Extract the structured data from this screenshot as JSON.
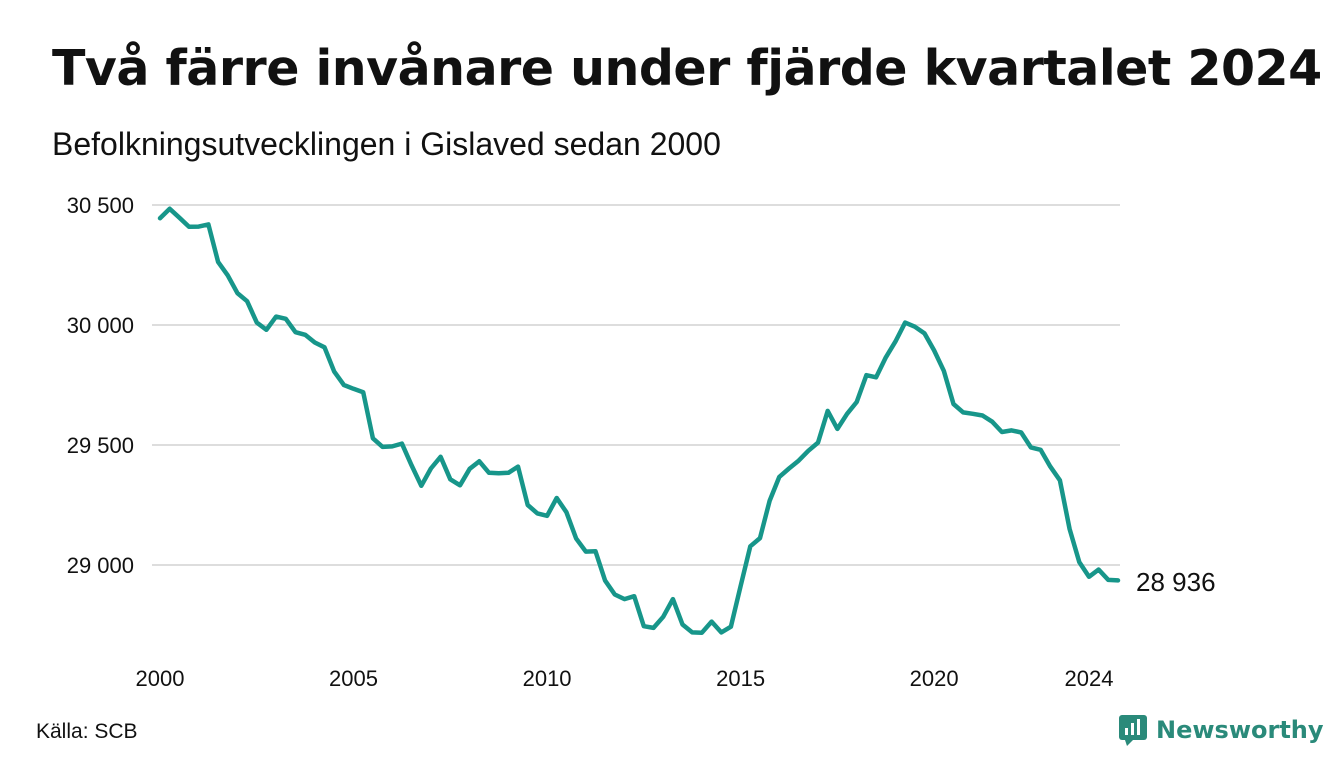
{
  "header": {
    "title": "Två färre invånare under fjärde kvartalet 2024",
    "subtitle": "Befolkningsutvecklingen i Gislaved sedan 2000"
  },
  "footer": {
    "source": "Källa: SCB",
    "brand": "Newsworthy",
    "brand_icon": "newsworthy-logo-icon"
  },
  "colors": {
    "line": "#17968a",
    "grid": "#dddddd",
    "brand": "#2a8a7a"
  },
  "chart_data": {
    "type": "line",
    "title": "Två färre invånare under fjärde kvartalet 2024",
    "subtitle": "Befolkningsutvecklingen i Gislaved sedan 2000",
    "xlabel": "",
    "ylabel": "",
    "x_ticks": [
      2000,
      2005,
      2010,
      2015,
      2020,
      2024
    ],
    "y_ticks": [
      29000,
      29500,
      30000,
      30500
    ],
    "y_tick_labels": [
      "29 000",
      "29 500",
      "30 000",
      "30 500"
    ],
    "xlim": [
      2000,
      2024.75
    ],
    "ylim": [
      28680,
      30560
    ],
    "grid": true,
    "end_label": "28 936",
    "series": [
      {
        "x": [
          2000.0,
          2000.25,
          2000.5,
          2000.75,
          2001.0,
          2001.25,
          2001.5,
          2001.75,
          2002.0,
          2002.25,
          2002.5,
          2002.75,
          2003.0,
          2003.25,
          2003.5,
          2003.75,
          2004.0,
          2004.25,
          2004.5,
          2004.75,
          2005.0,
          2005.25,
          2005.5,
          2005.75,
          2006.0,
          2006.25,
          2006.5,
          2006.75,
          2007.0,
          2007.25,
          2007.5,
          2007.75,
          2008.0,
          2008.25,
          2008.5,
          2008.75,
          2009.0,
          2009.25,
          2009.5,
          2009.75,
          2010.0,
          2010.25,
          2010.5,
          2010.75,
          2011.0,
          2011.25,
          2011.5,
          2011.75,
          2012.0,
          2012.25,
          2012.5,
          2012.75,
          2013.0,
          2013.25,
          2013.5,
          2013.75,
          2014.0,
          2014.25,
          2014.5,
          2014.75,
          2015.0,
          2015.25,
          2015.5,
          2015.75,
          2016.0,
          2016.25,
          2016.5,
          2016.75,
          2017.0,
          2017.25,
          2017.5,
          2017.75,
          2018.0,
          2018.25,
          2018.5,
          2018.75,
          2019.0,
          2019.25,
          2019.5,
          2019.75,
          2020.0,
          2020.25,
          2020.5,
          2020.75,
          2021.0,
          2021.25,
          2021.5,
          2021.75,
          2022.0,
          2022.25,
          2022.5,
          2022.75,
          2023.0,
          2023.25,
          2023.5,
          2023.75,
          2024.0,
          2024.25,
          2024.5,
          2024.75
        ],
        "values": [
          30445,
          30484,
          30447,
          30409,
          30410,
          30419,
          30263,
          30207,
          30133,
          30099,
          30010,
          29980,
          30035,
          30026,
          29970,
          29959,
          29927,
          29907,
          29806,
          29750,
          29734,
          29720,
          29528,
          29492,
          29494,
          29506,
          29415,
          29330,
          29402,
          29451,
          29357,
          29332,
          29401,
          29432,
          29384,
          29382,
          29384,
          29410,
          29250,
          29215,
          29205,
          29279,
          29220,
          29111,
          29056,
          29057,
          28935,
          28877,
          28858,
          28870,
          28745,
          28738,
          28784,
          28858,
          28752,
          28719,
          28718,
          28764,
          28719,
          28743,
          28912,
          29078,
          29112,
          29267,
          29367,
          29402,
          29435,
          29476,
          29510,
          29642,
          29567,
          29630,
          29679,
          29791,
          29782,
          29865,
          29931,
          30010,
          29993,
          29965,
          29894,
          29809,
          29671,
          29636,
          29630,
          29623,
          29597,
          29554,
          29561,
          29552,
          29490,
          29480,
          29410,
          29353,
          29150,
          29012,
          28951,
          28981,
          28938,
          28936
        ]
      }
    ]
  }
}
